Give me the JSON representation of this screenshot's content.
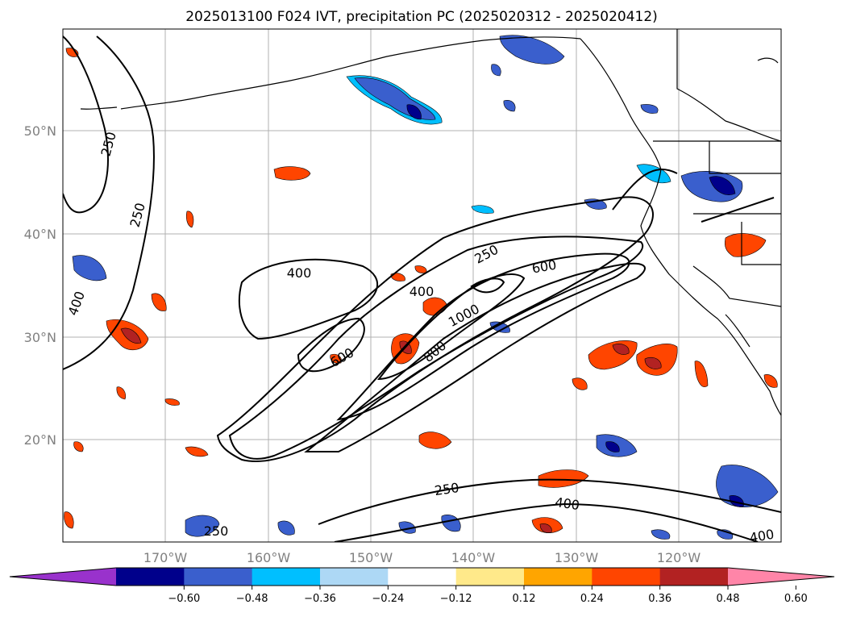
{
  "title": "2025013100 F024 IVT, precipitation PC (2025020312 - 2025020412)",
  "lat_labels": [
    "50°N",
    "40°N",
    "30°N",
    "20°N"
  ],
  "lon_labels": [
    "170°W",
    "160°W",
    "150°W",
    "140°W",
    "130°W",
    "120°W"
  ],
  "contour_labels": [
    "250",
    "250",
    "400",
    "400",
    "250",
    "600",
    "400",
    "1000",
    "800",
    "600",
    "250",
    "400",
    "250",
    "400"
  ],
  "colorbar": {
    "ticks": [
      "−0.60",
      "−0.48",
      "−0.36",
      "−0.24",
      "−0.12",
      "0.12",
      "0.24",
      "0.36",
      "0.48",
      "0.60"
    ],
    "colors": [
      "#9932cc",
      "#00008b",
      "#3a5fcd",
      "#00bfff",
      "#add8f5",
      "#ffffff",
      "#ffe98a",
      "#ffa500",
      "#ff4500",
      "#b22222",
      "#ff85a8"
    ]
  }
}
